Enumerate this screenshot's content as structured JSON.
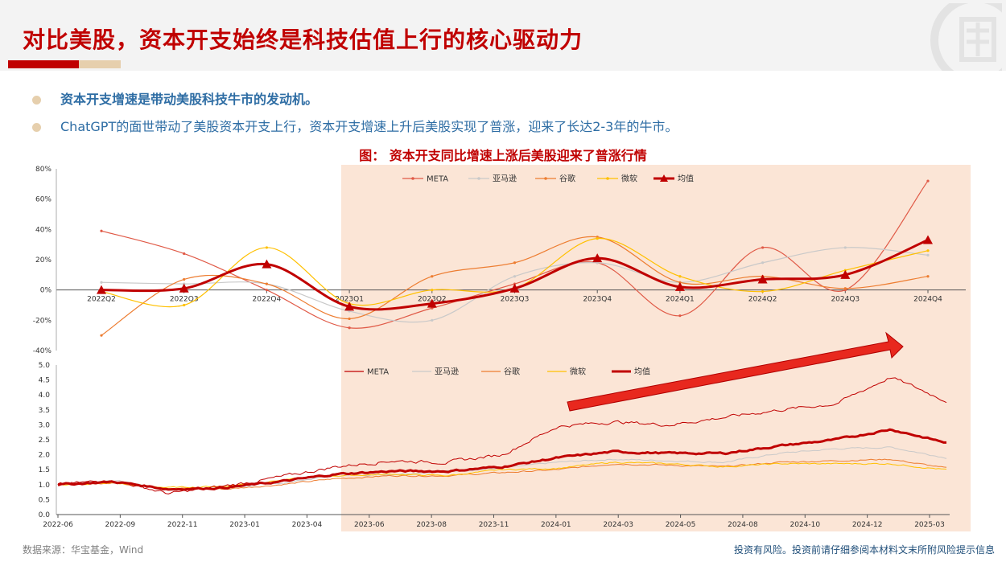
{
  "header": {
    "title": "对比美股，资本开支始终是科技估值上行的核心驱动力"
  },
  "bullets": [
    "资本开支增速是带动美股科技牛市的发动机。",
    "ChatGPT的面世带动了美股资本开支上行，资本开支增速上升后美股实现了普涨，迎来了长达2-3年的牛市。"
  ],
  "chart_title": "图： 资本开支同比增速上涨后美股迎来了普涨行情",
  "footer": {
    "source": "数据来源：华宝基金，Wind",
    "disclaimer": "投资有风险。投资前请仔细参阅本材料文末所附风险提示信息"
  },
  "colors": {
    "brand_red": "#c00000",
    "accent_tan": "#e6cfad",
    "shade": "#fbe5d6"
  },
  "chart_data": [
    {
      "type": "line",
      "categories": [
        "2022Q2",
        "2022Q3",
        "2022Q4",
        "2023Q1",
        "2023Q2",
        "2023Q3",
        "2023Q4",
        "2024Q1",
        "2024Q2",
        "2024Q3",
        "2024Q4"
      ],
      "y_ticks": [
        "80%",
        "60%",
        "40%",
        "20%",
        "0%",
        "-20%",
        "-40%"
      ],
      "ylim": [
        -40,
        80
      ],
      "legend": [
        "META",
        "亚马逊",
        "谷歌",
        "微软",
        "均值"
      ],
      "series": [
        {
          "name": "META",
          "color": "#e05a47",
          "values": [
            39,
            24,
            0,
            -25,
            -12,
            4,
            18,
            -17,
            28,
            0,
            72
          ]
        },
        {
          "name": "亚马逊",
          "color": "#c9c9c9",
          "values": [
            5,
            4,
            4,
            -14,
            -20,
            9,
            18,
            5,
            18,
            28,
            23
          ]
        },
        {
          "name": "谷歌",
          "color": "#ed7d31",
          "values": [
            -30,
            7,
            4,
            -19,
            9,
            18,
            35,
            5,
            9,
            1,
            9
          ]
        },
        {
          "name": "微软",
          "color": "#ffc000",
          "values": [
            -1,
            -10,
            28,
            -9,
            0,
            1,
            34,
            9,
            -1,
            13,
            26
          ]
        },
        {
          "name": "均值",
          "color": "#c00000",
          "values": [
            0,
            1,
            17,
            -11,
            -9,
            1,
            21,
            2,
            7,
            10,
            33
          ]
        }
      ],
      "shaded_from": "2023Q1"
    },
    {
      "type": "line",
      "x_ticks": [
        "2022-06",
        "2022-09",
        "2022-11",
        "2023-01",
        "2023-04",
        "2023-06",
        "2023-08",
        "2023-11",
        "2024-01",
        "2024-03",
        "2024-05",
        "2024-08",
        "2024-10",
        "2024-12",
        "2025-03"
      ],
      "y_ticks": [
        "5.0",
        "4.5",
        "4.0",
        "3.5",
        "3.0",
        "2.5",
        "2.0",
        "1.5",
        "1.0",
        "0.5",
        "0.0"
      ],
      "ylim": [
        0,
        5
      ],
      "legend": [
        "META",
        "亚马逊",
        "谷歌",
        "微软",
        "均值"
      ],
      "series": [
        {
          "name": "META",
          "color": "#c00000",
          "values": [
            1.0,
            1.15,
            0.7,
            0.95,
            1.25,
            1.6,
            1.8,
            1.75,
            2.0,
            2.95,
            3.1,
            3.0,
            3.25,
            3.5,
            3.7,
            4.6,
            3.8
          ]
        },
        {
          "name": "亚马逊",
          "color": "#c9c9c9",
          "values": [
            1.0,
            1.15,
            0.85,
            0.9,
            1.05,
            1.3,
            1.35,
            1.45,
            1.55,
            1.75,
            1.85,
            1.8,
            1.75,
            2.05,
            2.2,
            2.25,
            1.9
          ]
        },
        {
          "name": "谷歌",
          "color": "#ed7d31",
          "values": [
            1.0,
            1.05,
            0.9,
            0.85,
            1.0,
            1.2,
            1.3,
            1.3,
            1.4,
            1.5,
            1.7,
            1.65,
            1.6,
            1.75,
            1.8,
            1.85,
            1.55
          ]
        },
        {
          "name": "微软",
          "color": "#ffc000",
          "values": [
            1.0,
            1.05,
            0.9,
            0.95,
            1.15,
            1.3,
            1.35,
            1.3,
            1.5,
            1.55,
            1.75,
            1.7,
            1.6,
            1.7,
            1.7,
            1.7,
            1.5
          ]
        },
        {
          "name": "均值",
          "color": "#c00000",
          "values": [
            1.0,
            1.1,
            0.85,
            0.9,
            1.1,
            1.35,
            1.45,
            1.45,
            1.6,
            1.9,
            2.1,
            2.05,
            2.05,
            2.3,
            2.5,
            2.85,
            2.4
          ]
        }
      ],
      "shaded_from": "2023-05",
      "annotation": "trend-arrow"
    }
  ]
}
